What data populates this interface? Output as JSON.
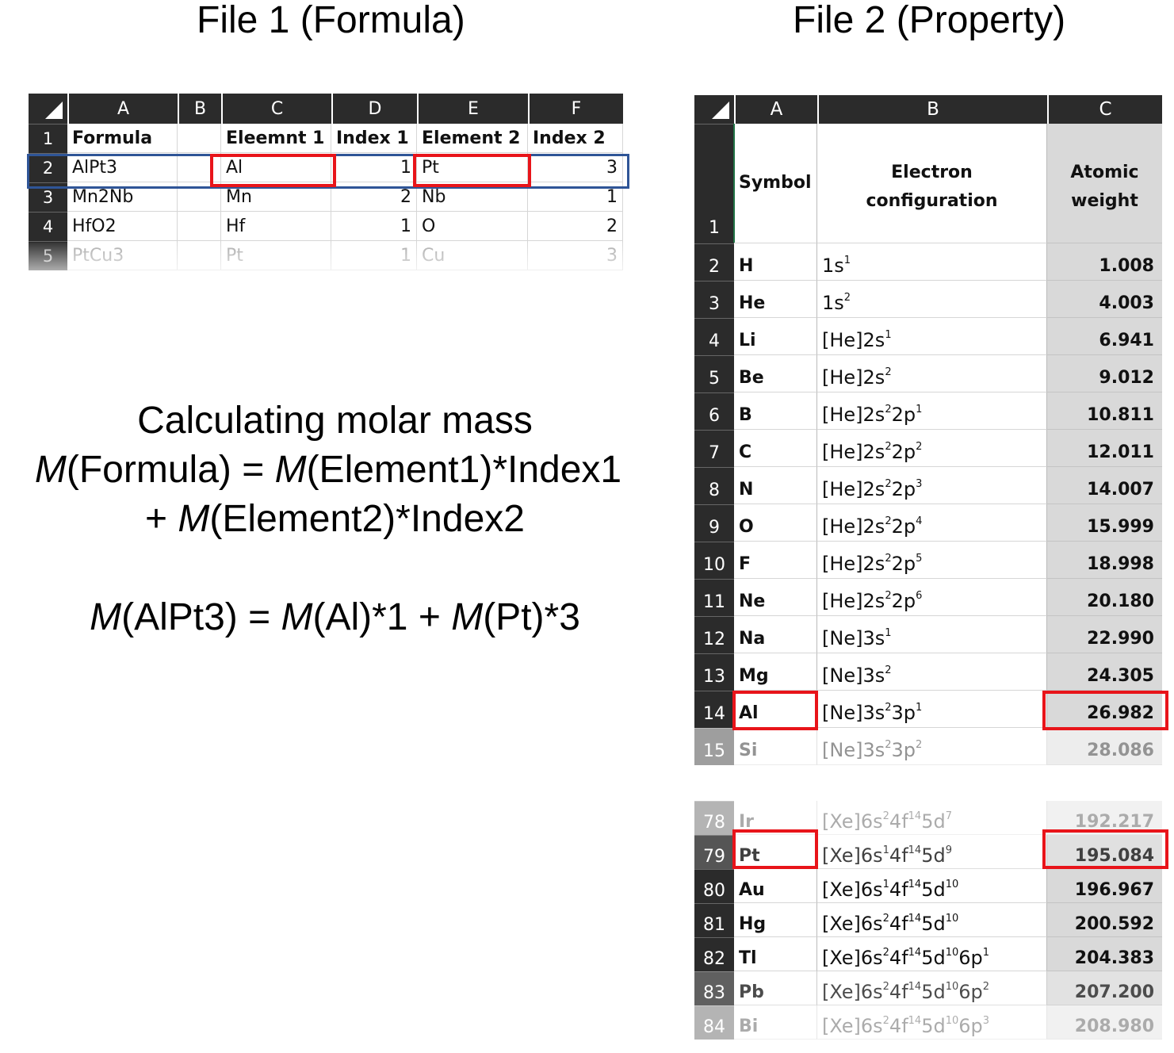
{
  "titles": {
    "file1": "File 1 (Formula)",
    "file2": "File 2 (Property)"
  },
  "sheet1": {
    "columns": [
      "A",
      "B",
      "C",
      "D",
      "E",
      "F"
    ],
    "rows": [
      {
        "num": "1",
        "a": "Formula",
        "b": "",
        "c": "Eleemnt 1",
        "d": "Index 1",
        "e": "Element 2",
        "f": "Index 2"
      },
      {
        "num": "2",
        "a": "AlPt3",
        "b": "",
        "c": "Al",
        "d": "1",
        "e": "Pt",
        "f": "3"
      },
      {
        "num": "3",
        "a": "Mn2Nb",
        "b": "",
        "c": "Mn",
        "d": "2",
        "e": "Nb",
        "f": "1"
      },
      {
        "num": "4",
        "a": "HfO2",
        "b": "",
        "c": "Hf",
        "d": "1",
        "e": "O",
        "f": "2"
      },
      {
        "num": "5",
        "a": "PtCu3",
        "b": "",
        "c": "Pt",
        "d": "1",
        "e": "Cu",
        "f": "3"
      }
    ]
  },
  "formula": {
    "line1": "Calculating molar mass",
    "m": "M",
    "line2a": "(Formula) = ",
    "line2b": "(Element1)*Index1",
    "line3a": "+ ",
    "line3b": "(Element2)*Index2",
    "line4a": "(AlPt3) = ",
    "line4b": "(Al)*1 + ",
    "line4c": "(Pt)*3"
  },
  "sheet2": {
    "columns": [
      "A",
      "B",
      "C"
    ],
    "header": {
      "num": "1",
      "symbol": "Symbol",
      "config_1": "Electron",
      "config_2": "configuration",
      "weight_1": "Atomic",
      "weight_2": "weight"
    },
    "rows_top": [
      {
        "num": "2",
        "sym": "H",
        "cfg": [
          [
            "1s",
            "1"
          ]
        ],
        "wt": "1.008"
      },
      {
        "num": "3",
        "sym": "He",
        "cfg": [
          [
            "1s",
            "2"
          ]
        ],
        "wt": "4.003"
      },
      {
        "num": "4",
        "sym": "Li",
        "cfg": [
          [
            "[He]2s",
            "1"
          ]
        ],
        "wt": "6.941"
      },
      {
        "num": "5",
        "sym": "Be",
        "cfg": [
          [
            "[He]2s",
            "2"
          ]
        ],
        "wt": "9.012"
      },
      {
        "num": "6",
        "sym": "B",
        "cfg": [
          [
            "[He]2s",
            "2"
          ],
          [
            "2p",
            "1"
          ]
        ],
        "wt": "10.811"
      },
      {
        "num": "7",
        "sym": "C",
        "cfg": [
          [
            "[He]2s",
            "2"
          ],
          [
            "2p",
            "2"
          ]
        ],
        "wt": "12.011"
      },
      {
        "num": "8",
        "sym": "N",
        "cfg": [
          [
            "[He]2s",
            "2"
          ],
          [
            "2p",
            "3"
          ]
        ],
        "wt": "14.007"
      },
      {
        "num": "9",
        "sym": "O",
        "cfg": [
          [
            "[He]2s",
            "2"
          ],
          [
            "2p",
            "4"
          ]
        ],
        "wt": "15.999"
      },
      {
        "num": "10",
        "sym": "F",
        "cfg": [
          [
            "[He]2s",
            "2"
          ],
          [
            "2p",
            "5"
          ]
        ],
        "wt": "18.998"
      },
      {
        "num": "11",
        "sym": "Ne",
        "cfg": [
          [
            "[He]2s",
            "2"
          ],
          [
            "2p",
            "6"
          ]
        ],
        "wt": "20.180"
      },
      {
        "num": "12",
        "sym": "Na",
        "cfg": [
          [
            "[Ne]3s",
            "1"
          ]
        ],
        "wt": "22.990"
      },
      {
        "num": "13",
        "sym": "Mg",
        "cfg": [
          [
            "[Ne]3s",
            "2"
          ]
        ],
        "wt": "24.305"
      },
      {
        "num": "14",
        "sym": "Al",
        "cfg": [
          [
            "[Ne]3s",
            "2"
          ],
          [
            "3p",
            "1"
          ]
        ],
        "wt": "26.982"
      },
      {
        "num": "15",
        "sym": "Si",
        "cfg": [
          [
            "[Ne]3s",
            "2"
          ],
          [
            "3p",
            "2"
          ]
        ],
        "wt": "28.086"
      }
    ],
    "rows_bottom": [
      {
        "num": "78",
        "sym": "Ir",
        "cfg": [
          [
            "[Xe]6s",
            "2"
          ],
          [
            "4f",
            "14"
          ],
          [
            "5d",
            "7"
          ]
        ],
        "wt": "192.217"
      },
      {
        "num": "79",
        "sym": "Pt",
        "cfg": [
          [
            "[Xe]6s",
            "1"
          ],
          [
            "4f",
            "14"
          ],
          [
            "5d",
            "9"
          ]
        ],
        "wt": "195.084"
      },
      {
        "num": "80",
        "sym": "Au",
        "cfg": [
          [
            "[Xe]6s",
            "1"
          ],
          [
            "4f",
            "14"
          ],
          [
            "5d",
            "10"
          ]
        ],
        "wt": "196.967"
      },
      {
        "num": "81",
        "sym": "Hg",
        "cfg": [
          [
            "[Xe]6s",
            "2"
          ],
          [
            "4f",
            "14"
          ],
          [
            "5d",
            "10"
          ]
        ],
        "wt": "200.592"
      },
      {
        "num": "82",
        "sym": "Tl",
        "cfg": [
          [
            "[Xe]6s",
            "2"
          ],
          [
            "4f",
            "14"
          ],
          [
            "5d",
            "10"
          ],
          [
            "6p",
            "1"
          ]
        ],
        "wt": "204.383"
      },
      {
        "num": "83",
        "sym": "Pb",
        "cfg": [
          [
            "[Xe]6s",
            "2"
          ],
          [
            "4f",
            "14"
          ],
          [
            "5d",
            "10"
          ],
          [
            "6p",
            "2"
          ]
        ],
        "wt": "207.200"
      },
      {
        "num": "84",
        "sym": "Bi",
        "cfg": [
          [
            "[Xe]6s",
            "2"
          ],
          [
            "4f",
            "14"
          ],
          [
            "5d",
            "10"
          ],
          [
            "6p",
            "3"
          ]
        ],
        "wt": "208.980"
      }
    ]
  },
  "colors": {
    "highlight_red": "#e8141a",
    "highlight_blue": "#2f5597",
    "header_dark": "#2b2b2b",
    "weight_column": "#d9d9d9"
  }
}
